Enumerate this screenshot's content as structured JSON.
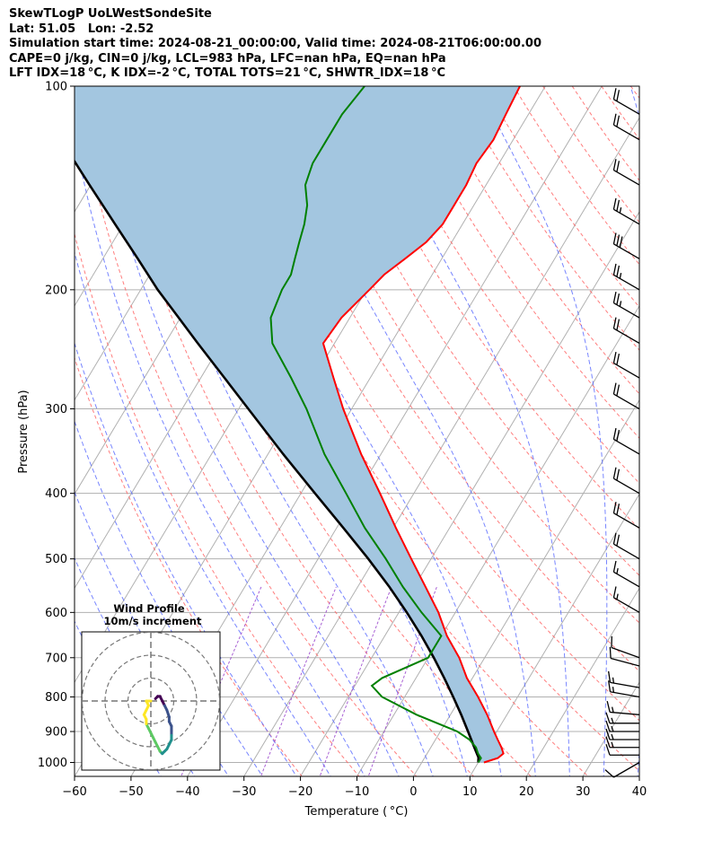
{
  "header": {
    "line1": "SkewTLogP UoLWestSondeSite",
    "line2": "Lat: 51.05   Lon: -2.52",
    "line3": "Simulation start time: 2024-08-21_00:00:00, Valid time: 2024-08-21T06:00:00.00",
    "line4": "CAPE=0 j/kg, CIN=0 j/kg, LCL=983 hPa, LFC=nan hPa, EQ=nan hPa",
    "line5": "LFT IDX=18 °C, K IDX=-2 °C, TOTAL TOTS=21 °C, SHWTR_IDX=18 °C"
  },
  "chart_data": {
    "type": "line",
    "title": "",
    "xlabel": "Temperature ( °C)",
    "ylabel": "Pressure (hPa)",
    "xlim": [
      -60,
      40
    ],
    "ylim": [
      1050,
      100
    ],
    "yscale": "log",
    "x_ticks": [
      -60,
      -50,
      -40,
      -30,
      -20,
      -10,
      0,
      10,
      20,
      30,
      40
    ],
    "x_tick_labels": [
      "−60",
      "−50",
      "−40",
      "−30",
      "−20",
      "−10",
      "0",
      "10",
      "20",
      "30",
      "40"
    ],
    "y_ticks": [
      1000,
      900,
      800,
      700,
      600,
      500,
      400,
      300,
      200,
      100
    ],
    "y_tick_labels": [
      "1000",
      "900",
      "800",
      "700",
      "600",
      "500",
      "400",
      "300",
      "200",
      "100"
    ],
    "grid": true,
    "colors": {
      "temperature": "#ff0000",
      "dewpoint": "#008000",
      "parcel": "#000000",
      "cape_fill": "#a3c6e0",
      "dry_adiabat": "#ff6666",
      "moist_adiabat": "#5566ff",
      "mixing_ratio": "#9944cc",
      "isotherm": "#b0b0b0"
    },
    "series": [
      {
        "key": "temperature",
        "pressure": [
          1000,
          985,
          970,
          950,
          925,
          900,
          850,
          800,
          750,
          700,
          650,
          600,
          550,
          500,
          450,
          400,
          350,
          300,
          270,
          240,
          220,
          200,
          190,
          180,
          170,
          160,
          150,
          140,
          130,
          120,
          110,
          100
        ],
        "temp": [
          11.0,
          13.0,
          13.5,
          12.5,
          11.0,
          9.5,
          6.5,
          3.0,
          -1.0,
          -4.5,
          -9.0,
          -13.0,
          -18.0,
          -23.5,
          -29.5,
          -36.0,
          -43.5,
          -51.5,
          -56.5,
          -62.0,
          -61.5,
          -59.5,
          -58.5,
          -56.5,
          -54.5,
          -53.5,
          -53.5,
          -53.5,
          -54.0,
          -53.5,
          -54.0,
          -54.5
        ]
      },
      {
        "key": "dewpoint",
        "pressure": [
          1000,
          985,
          970,
          950,
          925,
          900,
          850,
          800,
          770,
          750,
          700,
          650,
          600,
          550,
          500,
          450,
          400,
          350,
          300,
          270,
          240,
          220,
          200,
          190,
          180,
          170,
          160,
          150,
          140,
          130,
          120,
          110,
          100
        ],
        "temp": [
          10.0,
          10.0,
          9.0,
          8.0,
          6.0,
          3.0,
          -6.0,
          -14.0,
          -17.0,
          -16.0,
          -10.0,
          -10.0,
          -16.0,
          -22.0,
          -28.0,
          -35.0,
          -42.0,
          -50.0,
          -58.0,
          -64.0,
          -71.0,
          -74.0,
          -75.0,
          -75.0,
          -76.0,
          -77.0,
          -78.0,
          -79.5,
          -82.0,
          -83.0,
          -83.0,
          -83.0,
          -82.0
        ]
      },
      {
        "key": "parcel",
        "pressure": [
          1000,
          983,
          950,
          900,
          850,
          800,
          750,
          700,
          650,
          600,
          550,
          500,
          450,
          400,
          350,
          300,
          270,
          240,
          220,
          200,
          180,
          160,
          140,
          120,
          100
        ],
        "temp": [
          10.0,
          9.5,
          7.7,
          4.9,
          1.9,
          -1.4,
          -5.0,
          -9.0,
          -13.5,
          -18.6,
          -24.4,
          -31.1,
          -38.8,
          -47.5,
          -57.3,
          -68.3,
          -75.8,
          -84.2,
          -90.3,
          -97.0,
          -103.8,
          -111.5,
          -120.2,
          -130.1,
          -141.5
        ]
      }
    ],
    "wind_barbs": {
      "pressure": [
        1000,
        975,
        950,
        925,
        900,
        875,
        850,
        800,
        775,
        720,
        700,
        600,
        550,
        500,
        450,
        400,
        350,
        300,
        270,
        240,
        220,
        200,
        180,
        160,
        140,
        120,
        110
      ],
      "speed_kt": [
        10,
        10,
        15,
        15,
        15,
        15,
        15,
        15,
        15,
        10,
        10,
        15,
        15,
        20,
        20,
        20,
        20,
        20,
        20,
        20,
        25,
        25,
        30,
        25,
        20,
        20,
        20
      ],
      "direction_deg": [
        240,
        270,
        270,
        270,
        270,
        270,
        275,
        280,
        280,
        285,
        290,
        300,
        300,
        300,
        300,
        300,
        300,
        300,
        300,
        300,
        300,
        300,
        300,
        300,
        300,
        300,
        300
      ]
    },
    "inset": {
      "title_line1": "Wind Profile",
      "title_line2": "10m/s increment",
      "rings_mps": [
        10,
        20,
        30
      ],
      "hodograph_u": [
        2,
        3,
        3,
        4,
        4,
        4,
        5,
        6,
        7,
        8,
        8,
        9,
        9,
        9,
        9,
        8,
        7,
        6,
        5,
        4,
        3,
        2,
        1,
        0,
        -1,
        -2,
        -2,
        -3,
        -2,
        -1,
        -2,
        0
      ],
      "hodograph_v": [
        1,
        2,
        2,
        2,
        2,
        2,
        0,
        -2,
        -4,
        -7,
        -9,
        -11,
        -13,
        -15,
        -17,
        -19,
        -21,
        -22,
        -23,
        -22,
        -20,
        -18,
        -16,
        -14,
        -12,
        -10,
        -8,
        -6,
        -4,
        -2,
        0,
        0
      ]
    }
  }
}
